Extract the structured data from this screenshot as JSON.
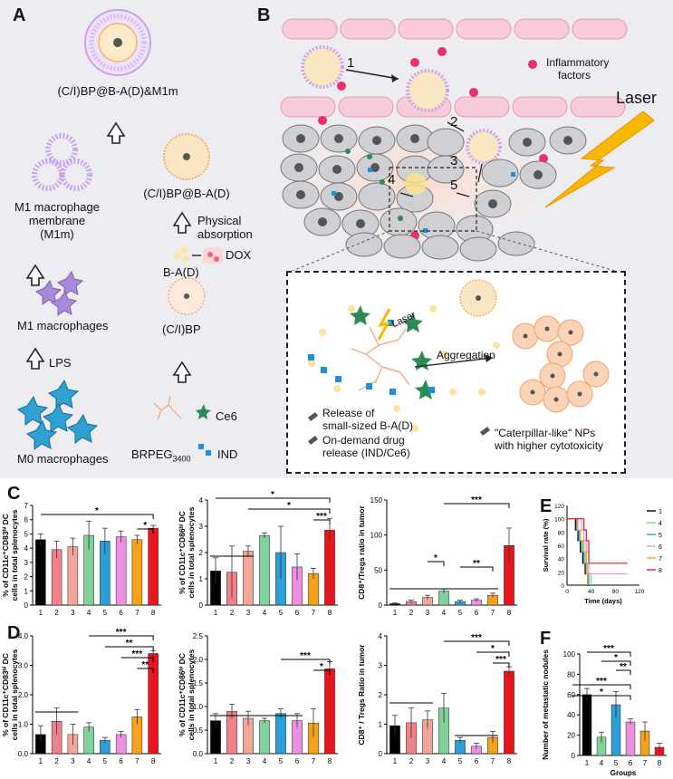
{
  "panels": {
    "A": "A",
    "B": "B",
    "C": "C",
    "D": "D",
    "E": "E",
    "F": "F"
  },
  "panel_a": {
    "final_np": "(C/I)BP@B-A(D)&M1m",
    "membrane_line1": "M1 macrophage",
    "membrane_line2": "membrane",
    "membrane_line3": "(M1m)",
    "m1": "M1 macrophages",
    "lps": "LPS",
    "m0": "M0 macrophages",
    "cibpba": "(C/I)BP@B-A(D)",
    "phys1": "Physical",
    "phys2": "absorption",
    "dox": "DOX",
    "bad": "B-A(D)",
    "cibp": "(C/I)BP",
    "ce6": "Ce6",
    "brpeg": "BRPEG",
    "brpeg_sub": "3400",
    "ind": "IND"
  },
  "panel_b": {
    "steps": [
      "1",
      "2",
      "3",
      "4",
      "5"
    ],
    "inflammatory1": "Inflammatory",
    "inflammatory2": "factors",
    "laser": "Laser",
    "zoom_laser": "Laser",
    "aggregation": "Aggregation",
    "rel1a": "Release of",
    "rel1b": "small-sized B-A(D)",
    "rel2a": "On-demand drug",
    "rel2b": "release (IND/Ce6)",
    "cat1": "\"Caterpillar-like\" NPs",
    "cat2": "with higher cytotoxicity"
  },
  "colors": {
    "g1": "#000000",
    "g2": "#f0808a",
    "g3": "#f2a59b",
    "g4": "#80d29a",
    "g5": "#2c9fd9",
    "g6": "#ee8fe4",
    "g7": "#f5a21a",
    "g8": "#e8161c"
  },
  "chart_data": [
    {
      "id": "C1",
      "type": "bar",
      "ylabel": [
        "% of CD11c⁺CD83ʰⁱ DC",
        "cells in total splenocytes"
      ],
      "categories": [
        "1",
        "2",
        "3",
        "4",
        "5",
        "6",
        "7",
        "8"
      ],
      "values": [
        4.6,
        3.9,
        4.1,
        4.9,
        4.5,
        4.8,
        4.6,
        5.4
      ],
      "errors": [
        0.4,
        0.6,
        0.6,
        1.0,
        0.9,
        0.4,
        0.3,
        0.2
      ],
      "ylim": [
        0,
        7
      ],
      "yticks": [
        "0",
        "1",
        "2",
        "3",
        "4",
        "5",
        "6",
        "7"
      ],
      "significance": [
        "*",
        "*"
      ]
    },
    {
      "id": "C2",
      "type": "bar",
      "ylabel": [
        "% of CD11c⁺CD86ʰⁱ DC",
        "cells in total splenocytes"
      ],
      "categories": [
        "1",
        "2",
        "3",
        "4",
        "5",
        "6",
        "7",
        "8"
      ],
      "values": [
        1.3,
        1.25,
        2.05,
        2.65,
        2.0,
        1.45,
        1.2,
        2.85
      ],
      "errors": [
        0.5,
        1.0,
        0.2,
        0.1,
        1.0,
        0.5,
        0.2,
        0.45
      ],
      "ylim": [
        0,
        4
      ],
      "yticks": [
        "0",
        "1",
        "2",
        "3",
        "4"
      ],
      "significance": [
        "*",
        "*",
        "***"
      ]
    },
    {
      "id": "C3",
      "type": "bar",
      "ylabel": [
        "CD8⁺/Tregs ratio in tumor"
      ],
      "categories": [
        "1",
        "2",
        "3",
        "4",
        "5",
        "6",
        "7",
        "8"
      ],
      "values": [
        2,
        5,
        11,
        20,
        5,
        7,
        14,
        85
      ],
      "errors": [
        1,
        2,
        3,
        3,
        2,
        2,
        3,
        25
      ],
      "ylim": [
        0,
        150
      ],
      "yticks": [
        "0",
        "50",
        "100",
        "150"
      ],
      "significance": [
        "***",
        "*",
        "**"
      ]
    },
    {
      "id": "E",
      "type": "line",
      "ylabel": "Survival rate (%)",
      "xlabel": "Time (days)",
      "ylim": [
        0,
        120
      ],
      "xlim": [
        0,
        120
      ],
      "yticks": [
        "0",
        "20",
        "40",
        "60",
        "80",
        "100",
        "120"
      ],
      "xticks": [
        "0",
        "40",
        "80",
        "120"
      ],
      "legend": [
        "1",
        "4",
        "5",
        "6",
        "7",
        "8"
      ],
      "series": [
        {
          "name": "1",
          "x": [
            0,
            10,
            14,
            18,
            22,
            26,
            30,
            34,
            38
          ],
          "y": [
            100,
            100,
            83,
            67,
            50,
            33,
            17,
            0,
            0
          ]
        },
        {
          "name": "4",
          "x": [
            0,
            14,
            18,
            22,
            26,
            30,
            34,
            40
          ],
          "y": [
            100,
            100,
            83,
            67,
            50,
            33,
            17,
            0
          ]
        },
        {
          "name": "5",
          "x": [
            0,
            12,
            16,
            20,
            24,
            28,
            32,
            36
          ],
          "y": [
            100,
            100,
            83,
            67,
            50,
            33,
            17,
            0
          ]
        },
        {
          "name": "6",
          "x": [
            0,
            20,
            24,
            28,
            32,
            36,
            100
          ],
          "y": [
            100,
            100,
            83,
            67,
            50,
            17,
            17
          ]
        },
        {
          "name": "7",
          "x": [
            0,
            14,
            18,
            22,
            28,
            32,
            34
          ],
          "y": [
            100,
            100,
            83,
            67,
            50,
            17,
            0
          ]
        },
        {
          "name": "8",
          "x": [
            0,
            24,
            28,
            32,
            36,
            100
          ],
          "y": [
            100,
            100,
            83,
            67,
            33,
            33
          ]
        }
      ]
    },
    {
      "id": "D1",
      "type": "bar",
      "ylabel": [
        "% of CD11c⁺CD83ʰⁱ DC",
        "cells in total splenocytes"
      ],
      "categories": [
        "1",
        "2",
        "3",
        "4",
        "5",
        "6",
        "7",
        "8"
      ],
      "values": [
        0.65,
        1.1,
        0.65,
        0.9,
        0.45,
        0.65,
        1.25,
        3.4
      ],
      "errors": [
        0.3,
        0.45,
        0.35,
        0.15,
        0.1,
        0.1,
        0.25,
        0.1
      ],
      "ylim": [
        0,
        4
      ],
      "yticks": [
        "0.0",
        "1.0",
        "2.0",
        "3.0",
        "4.0"
      ],
      "significance": [
        "***",
        "**",
        "***",
        "**"
      ]
    },
    {
      "id": "D2",
      "type": "bar",
      "ylabel": [
        "% of CD11c⁺CD86ʰⁱ DC",
        "cells in total splenocytes"
      ],
      "categories": [
        "1",
        "2",
        "3",
        "4",
        "5",
        "6",
        "7",
        "8"
      ],
      "values": [
        0.7,
        0.9,
        0.75,
        0.7,
        0.85,
        0.7,
        0.65,
        1.8
      ],
      "errors": [
        0.15,
        0.15,
        0.15,
        0.05,
        0.1,
        0.15,
        0.3,
        0.15
      ],
      "ylim": [
        0,
        2.5
      ],
      "yticks": [
        "0.0",
        "0.5",
        "1.0",
        "1.5",
        "2.0",
        "2.5"
      ],
      "significance": [
        "***",
        "*"
      ]
    },
    {
      "id": "D3",
      "type": "bar",
      "ylabel": [
        "CD8⁺ / Tregs Ratio in tumor"
      ],
      "categories": [
        "1",
        "2",
        "3",
        "4",
        "5",
        "6",
        "7",
        "8"
      ],
      "values": [
        0.95,
        1.05,
        1.15,
        1.55,
        0.45,
        0.25,
        0.55,
        2.8
      ],
      "errors": [
        0.35,
        0.5,
        0.3,
        0.5,
        0.1,
        0.1,
        0.2,
        0.15
      ],
      "ylim": [
        0,
        4
      ],
      "yticks": [
        "0",
        "1",
        "2",
        "3",
        "4"
      ],
      "significance": [
        "***",
        "*",
        "***"
      ]
    },
    {
      "id": "F",
      "type": "bar",
      "ylabel": [
        "Number of metastatic nodules"
      ],
      "xlabel": "Groups",
      "categories": [
        "1",
        "4",
        "5",
        "6",
        "7",
        "8"
      ],
      "values": [
        60,
        18,
        50,
        33,
        24,
        8
      ],
      "errors": [
        6,
        5,
        13,
        3,
        9,
        4
      ],
      "ylim": [
        0,
        100
      ],
      "yticks": [
        "0",
        "20",
        "40",
        "60",
        "80",
        "100"
      ],
      "significance": [
        "***",
        "*",
        "**",
        "***",
        "*"
      ]
    }
  ]
}
